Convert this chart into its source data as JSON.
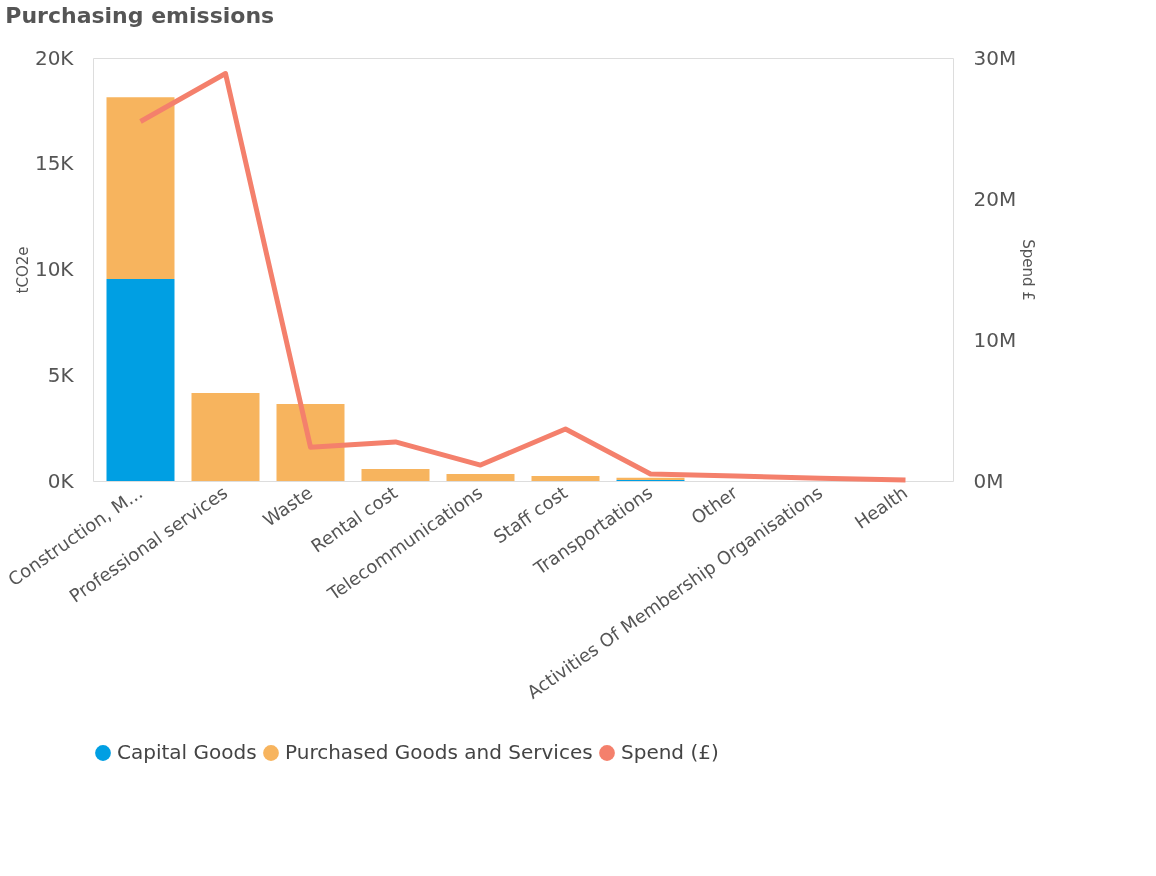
{
  "chart_data": {
    "type": "bar",
    "title": "Purchasing emissions",
    "ylabel": "tCO2e",
    "y2label": "Spend £",
    "categories": [
      "Construction, M...",
      "Professional services",
      "Waste",
      "Rental cost",
      "Telecommunications",
      "Staff cost",
      "Transportations",
      "Other",
      "Activities Of Membership Organisations",
      "Health"
    ],
    "stacked": true,
    "series": [
      {
        "name": "Capital Goods",
        "color": "#009fe3",
        "values": [
          9550,
          0,
          0,
          0,
          0,
          0,
          50,
          0,
          0,
          0
        ]
      },
      {
        "name": "Purchased Goods and Services",
        "color": "#f7b45e",
        "values": [
          8600,
          4160,
          3640,
          570,
          330,
          240,
          100,
          null,
          null,
          null
        ]
      },
      {
        "name": "Spend (£)",
        "color": "#f4806c",
        "type": "line",
        "axis": "y2",
        "values": [
          25500000,
          28900000,
          2400000,
          2770000,
          1130000,
          3690000,
          500000,
          350000,
          200000,
          70000
        ]
      }
    ],
    "ylim": [
      0,
      20000
    ],
    "yticks": [
      {
        "value": 0,
        "label": "0K"
      },
      {
        "value": 5000,
        "label": "5K"
      },
      {
        "value": 10000,
        "label": "10K"
      },
      {
        "value": 15000,
        "label": "15K"
      },
      {
        "value": 20000,
        "label": "20K"
      }
    ],
    "y2lim": [
      0,
      30000000
    ],
    "y2ticks": [
      {
        "value": 0,
        "label": "0M"
      },
      {
        "value": 10000000,
        "label": "10M"
      },
      {
        "value": 20000000,
        "label": "20M"
      },
      {
        "value": 30000000,
        "label": "30M"
      }
    ],
    "legend": "bottom left",
    "grid": false
  }
}
